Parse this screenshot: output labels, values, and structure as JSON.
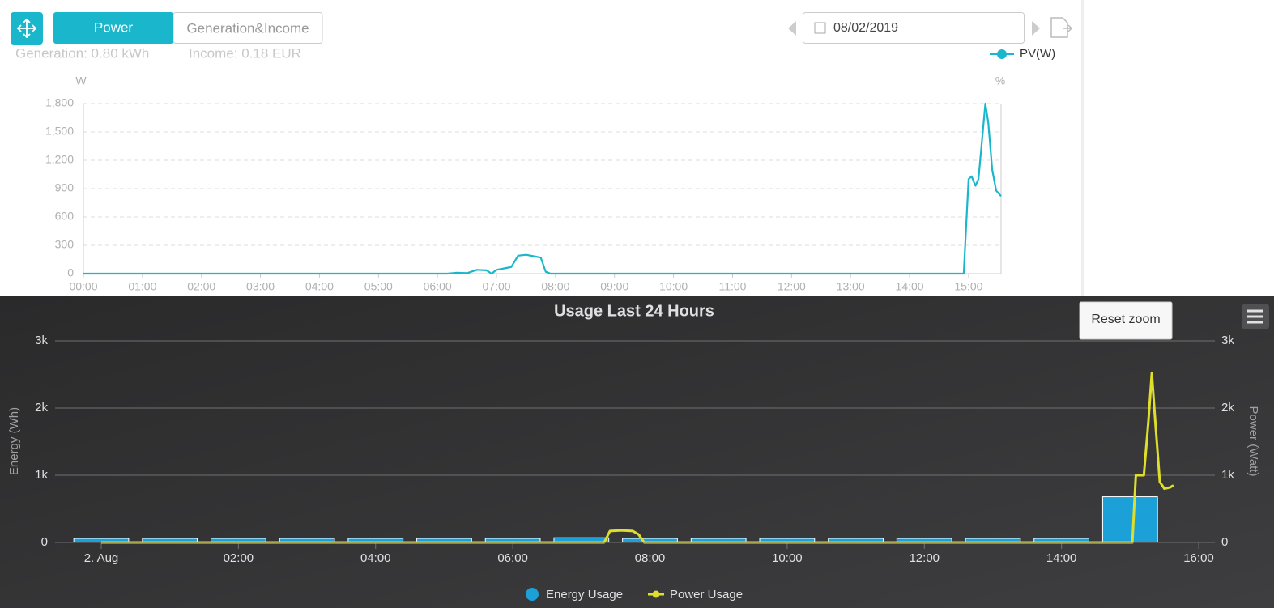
{
  "toolbar": {
    "tabs": [
      "Power",
      "Generation&Income"
    ],
    "date": "08/02/2019"
  },
  "summary": {
    "generation": "Generation:  0.80 kWh",
    "income": "Income:  0.18 EUR"
  },
  "reset_zoom": "Reset zoom",
  "chart_data": [
    {
      "type": "line",
      "y_unit": "W",
      "y2_unit": "%",
      "x": [
        "00:00",
        "06:10",
        "06:20",
        "06:30",
        "06:40",
        "06:50",
        "06:55",
        "07:00",
        "07:10",
        "07:15",
        "07:22",
        "07:30",
        "07:40",
        "07:45",
        "07:50",
        "07:55",
        "14:55",
        "15:00",
        "15:03",
        "15:07",
        "15:10",
        "15:14",
        "15:17",
        "15:20",
        "15:24",
        "15:28",
        "15:33"
      ],
      "series": [
        {
          "name": "PV(W)",
          "color": "#1ab7cc",
          "values": [
            0,
            0,
            10,
            5,
            40,
            35,
            0,
            40,
            60,
            70,
            190,
            200,
            180,
            170,
            20,
            0,
            0,
            1000,
            1030,
            930,
            1000,
            1450,
            1800,
            1600,
            1100,
            880,
            820
          ]
        }
      ],
      "xlim": [
        "00:00",
        "15:33"
      ],
      "xticks": [
        "00:00",
        "01:00",
        "02:00",
        "03:00",
        "04:00",
        "05:00",
        "06:00",
        "07:00",
        "08:00",
        "09:00",
        "10:00",
        "11:00",
        "12:00",
        "13:00",
        "14:00",
        "15:00"
      ],
      "ylim": [
        0,
        1800
      ],
      "yticks": [
        0,
        300,
        600,
        900,
        {
          "value": 1200,
          "label": "1,200"
        },
        {
          "value": 1500,
          "label": "1,500"
        },
        {
          "value": 1800,
          "label": "1,800"
        }
      ],
      "grid": true,
      "legend": "top-right"
    },
    {
      "type": "combo",
      "title": "Usage Last 24 Hours",
      "y_label": "Energy (Wh)",
      "y2_label": "Power (Watt)",
      "series": [
        {
          "name": "Energy Usage",
          "kind": "bar",
          "color": "#1ba0d8",
          "x": [
            "00:00",
            "01:00",
            "02:00",
            "03:00",
            "04:00",
            "05:00",
            "06:00",
            "07:00",
            "08:00",
            "09:00",
            "10:00",
            "11:00",
            "12:00",
            "13:00",
            "14:00",
            "15:00"
          ],
          "values": [
            60,
            60,
            60,
            60,
            60,
            60,
            60,
            70,
            60,
            60,
            60,
            60,
            60,
            60,
            60,
            680
          ]
        },
        {
          "name": "Power Usage",
          "kind": "line",
          "color": "#dede2b",
          "axis": "y2",
          "x": [
            "00:00",
            "07:20",
            "07:25",
            "07:35",
            "07:45",
            "07:50",
            "07:55",
            "15:02",
            "15:05",
            "15:12",
            "15:16",
            "15:19",
            "15:22",
            "15:26",
            "15:30",
            "15:35",
            "15:38"
          ],
          "values": [
            0,
            0,
            170,
            180,
            170,
            120,
            0,
            0,
            1000,
            1000,
            1800,
            2520,
            1800,
            900,
            800,
            820,
            850
          ]
        }
      ],
      "xlim": [
        "00:00",
        "16:00"
      ],
      "xticks": [
        {
          "value": "00:00",
          "label": "2. Aug"
        },
        "02:00",
        "04:00",
        "06:00",
        "08:00",
        "10:00",
        "12:00",
        "14:00",
        "16:00"
      ],
      "ylim": [
        0,
        3000
      ],
      "yticks": [
        0,
        {
          "value": 1000,
          "label": "1k"
        },
        {
          "value": 2000,
          "label": "2k"
        },
        {
          "value": 3000,
          "label": "3k"
        }
      ],
      "y2lim": [
        0,
        3000
      ],
      "y2ticks": [
        0,
        {
          "value": 1000,
          "label": "1k"
        },
        {
          "value": 2000,
          "label": "2k"
        },
        {
          "value": 3000,
          "label": "3k"
        }
      ],
      "grid": true,
      "legend": "bottom"
    }
  ]
}
